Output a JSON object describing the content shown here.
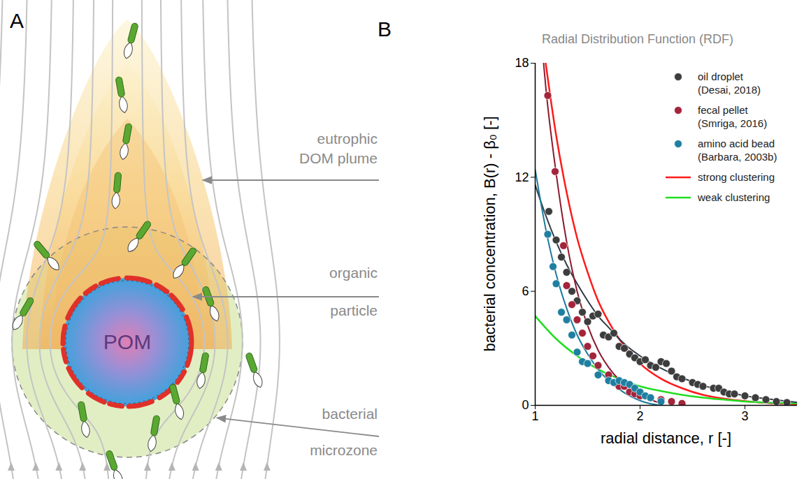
{
  "diagram": {
    "letter": "A",
    "particle_label": "POM",
    "labels": [
      {
        "lines": [
          "eutrophic",
          "DOM plume"
        ]
      },
      {
        "lines": [
          "organic",
          "particle"
        ]
      },
      {
        "lines": [
          "bacterial",
          "microzone"
        ]
      }
    ]
  },
  "chart_data": {
    "letter": "B",
    "type": "scatter",
    "title": "Radial Distribution Function (RDF)",
    "x_label": "radial distance, r  [-]",
    "y_label": "bacterial concentration, B(r) - β₀  [-]",
    "xlim": [
      1,
      3.5
    ],
    "xticks": [
      1,
      2,
      3
    ],
    "ylim": [
      0,
      18
    ],
    "yticks": [
      0,
      6,
      12,
      18
    ],
    "grid": false,
    "legend": "top-right",
    "series": [
      {
        "name": "oil droplet (Desai, 2018)",
        "type": "scatter",
        "marker": "circle",
        "color": "#3d3d3d",
        "x": [
          1.13,
          1.2,
          1.25,
          1.3,
          1.35,
          1.4,
          1.45,
          1.5,
          1.55,
          1.6,
          1.65,
          1.7,
          1.75,
          1.8,
          1.85,
          1.9,
          1.95,
          2.0,
          2.05,
          2.1,
          2.15,
          2.2,
          2.25,
          2.3,
          2.35,
          2.4,
          2.5,
          2.55,
          2.6,
          2.7,
          2.75,
          2.8,
          2.85,
          2.9,
          3.0,
          3.1,
          3.2,
          3.3,
          3.4
        ],
        "values": [
          10.2,
          8.7,
          7.8,
          7.0,
          6.0,
          5.5,
          4.9,
          4.4,
          4.7,
          4.8,
          3.7,
          3.6,
          3.8,
          3.1,
          3.0,
          2.7,
          2.5,
          2.3,
          2.4,
          2.1,
          2.0,
          2.3,
          2.2,
          1.8,
          1.5,
          1.4,
          1.2,
          1.1,
          1.0,
          0.9,
          0.9,
          0.7,
          0.6,
          0.6,
          0.5,
          0.4,
          0.3,
          0.2,
          0.15
        ],
        "fit": {
          "color": "#2e3a46",
          "x": [
            1,
            1.1,
            1.2,
            1.3,
            1.4,
            1.5,
            1.6,
            1.7,
            1.8,
            1.9,
            2,
            2.2,
            2.4,
            2.6,
            2.8,
            3,
            3.2,
            3.5
          ],
          "values": [
            11.6,
            10.0,
            8.6,
            7.4,
            6.4,
            5.5,
            4.7,
            4.1,
            3.5,
            3.0,
            2.6,
            1.95,
            1.45,
            1.05,
            0.75,
            0.5,
            0.35,
            0.15
          ]
        }
      },
      {
        "name": "fecal pellet (Smriga, 2016)",
        "type": "scatter",
        "marker": "circle",
        "color": "#a3243b",
        "x": [
          1.12,
          1.19,
          1.27,
          1.3,
          1.35,
          1.4,
          1.45,
          1.5,
          1.55,
          1.6,
          1.7,
          1.75,
          1.8,
          1.85,
          1.9,
          1.95,
          2.0,
          2.1,
          2.2,
          2.3,
          2.4
        ],
        "values": [
          16.3,
          12.3,
          8.4,
          6.3,
          5.3,
          4.5,
          3.8,
          3.1,
          2.6,
          2.1,
          1.6,
          1.2,
          1.0,
          1.0,
          0.7,
          0.6,
          0.5,
          0.4,
          0.3,
          0.2,
          0.1
        ],
        "fit": {
          "color": "#8b1a2e",
          "x": [
            1.08,
            1.1,
            1.2,
            1.3,
            1.4,
            1.5,
            1.6,
            1.7,
            1.8,
            1.9,
            2.0,
            2.1,
            2.2
          ],
          "values": [
            18,
            16.8,
            12.2,
            8.6,
            6.0,
            4.2,
            2.9,
            2.0,
            1.35,
            0.9,
            0.55,
            0.3,
            0.1
          ]
        }
      },
      {
        "name": "amino acid bead (Barbara, 2003b)",
        "type": "scatter",
        "marker": "circle",
        "color": "#1f7fa0",
        "x": [
          1.12,
          1.17,
          1.2,
          1.25,
          1.3,
          1.35,
          1.4,
          1.45,
          1.5,
          1.6,
          1.7,
          1.75,
          1.8,
          1.85,
          1.9,
          1.95,
          2.0,
          2.05,
          2.1,
          2.2
        ],
        "values": [
          9.0,
          7.3,
          6.4,
          4.9,
          4.5,
          3.7,
          2.8,
          2.3,
          2.2,
          1.6,
          1.3,
          1.2,
          1.3,
          1.2,
          1.1,
          0.9,
          0.7,
          0.5,
          0.4,
          0.2
        ],
        "fit": {
          "color": "#1a7a9a",
          "x": [
            1,
            1.1,
            1.2,
            1.3,
            1.4,
            1.5,
            1.6,
            1.7,
            1.8,
            1.9,
            2.0,
            2.1,
            2.2
          ],
          "values": [
            12.4,
            9.3,
            6.9,
            5.1,
            3.7,
            2.7,
            1.9,
            1.3,
            0.85,
            0.5,
            0.25,
            0.08,
            0
          ]
        }
      },
      {
        "name": "strong clustering",
        "type": "line",
        "line_style": "solid",
        "color": "#ff1a1a",
        "x": [
          1.1,
          1.2,
          1.3,
          1.4,
          1.5,
          1.6,
          1.7,
          1.8,
          1.9,
          2.0,
          2.2,
          2.4,
          2.6,
          2.8,
          3.0,
          3.2,
          3.5
        ],
        "values": [
          18,
          14.2,
          11.2,
          8.8,
          7.0,
          5.5,
          4.4,
          3.5,
          2.8,
          2.2,
          1.4,
          0.9,
          0.55,
          0.35,
          0.22,
          0.13,
          0.06
        ]
      },
      {
        "name": "weak clustering",
        "type": "line",
        "line_style": "solid",
        "color": "#22dd22",
        "x": [
          1,
          1.2,
          1.4,
          1.6,
          1.8,
          2,
          2.2,
          2.4,
          2.6,
          2.8,
          3,
          3.2,
          3.5
        ],
        "values": [
          4.7,
          3.5,
          2.6,
          1.9,
          1.4,
          1.0,
          0.75,
          0.55,
          0.4,
          0.3,
          0.2,
          0.15,
          0.1
        ]
      }
    ]
  }
}
